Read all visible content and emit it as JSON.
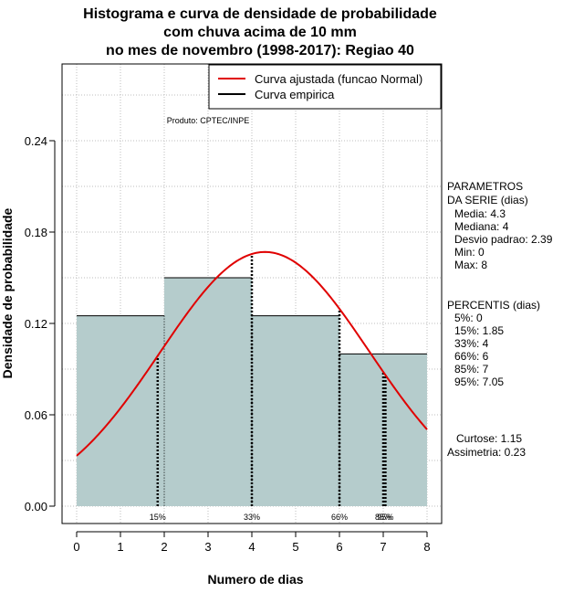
{
  "chart_data": {
    "type": "bar",
    "title_lines": [
      "Histograma e curva de densidade de probabilidade",
      "com chuva acima de 10 mm",
      "no mes de novembro (1998-2017): Regiao 40"
    ],
    "xlabel": "Numero de dias",
    "ylabel": "Densidade de probabilidade",
    "xlim": [
      0,
      8
    ],
    "ylim": [
      0,
      0.24
    ],
    "x_ticks": [
      "0",
      "1",
      "2",
      "3",
      "4",
      "5",
      "6",
      "7",
      "8"
    ],
    "y_ticks": [
      "0.00",
      "0.06",
      "0.12",
      "0.18",
      "0.24"
    ],
    "grid": true,
    "bins": [
      {
        "x0": 0,
        "x1": 2,
        "density": 0.125
      },
      {
        "x0": 2,
        "x1": 4,
        "density": 0.15
      },
      {
        "x0": 4,
        "x1": 6,
        "density": 0.125
      },
      {
        "x0": 6,
        "x1": 8,
        "density": 0.1
      }
    ],
    "fitted_curve": {
      "name": "Curva ajustada (funcao Normal)",
      "color": "#e00000",
      "mean": 4.3,
      "sd": 2.39,
      "x_from": 0,
      "x_to": 8
    },
    "empirical_curve": {
      "name": "Curva empirica",
      "color": "#000000"
    },
    "percentile_markers": [
      {
        "x": 1.85,
        "label": "15%"
      },
      {
        "x": 4,
        "label": "33%"
      },
      {
        "x": 6,
        "label": "66%"
      },
      {
        "x": 7,
        "label": "85%"
      },
      {
        "x": 7.05,
        "label": "95%"
      }
    ],
    "legend_position": "top-right",
    "bar_color": "#b5cccc",
    "product_label": "Produto: CPTEC/INPE"
  },
  "side_panel": {
    "params_title": "PARAMETROS\nDA SERIE (dias)",
    "params": [
      "Media: 4.3",
      "Mediana: 4",
      "Desvio padrao: 2.39",
      "Min: 0",
      "Max: 8"
    ],
    "percentis_title": "PERCENTIS (dias)",
    "percentis": [
      "5%: 0",
      "15%: 1.85",
      "33%: 4",
      "66%: 6",
      "85%: 7",
      "95%: 7.05"
    ],
    "curtose": "Curtose: 1.15",
    "assimetria": "Assimetria: 0.23"
  }
}
